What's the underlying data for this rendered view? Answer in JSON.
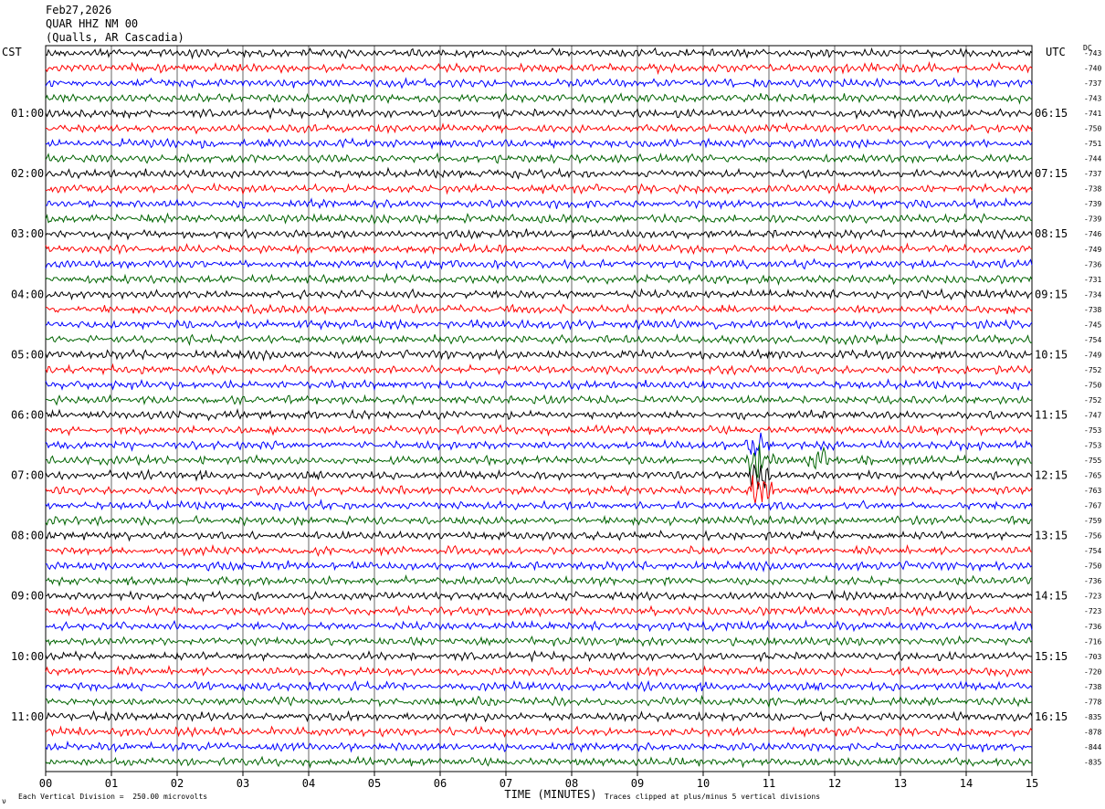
{
  "header": {
    "date": "Feb27,2026",
    "station": "QUAR HHZ NM 00",
    "location": "(Qualls, AR Cascadia)"
  },
  "left_tz": "CST",
  "right_tz": "UTC",
  "dc_label": "DC",
  "footer": {
    "scale_note": "Each Vertical Division =  250.00 microvolts",
    "clip_note": "Traces clipped at plus/minus 5 vertical divisions",
    "mark": "ν"
  },
  "chart_data": {
    "type": "line",
    "xlabel": "TIME (MINUTES)",
    "x_ticks": [
      "00",
      "01",
      "02",
      "03",
      "04",
      "05",
      "06",
      "07",
      "08",
      "09",
      "10",
      "11",
      "12",
      "13",
      "14",
      "15"
    ],
    "xlim": [
      0,
      15
    ],
    "trace_colors": [
      "#000000",
      "#ff0000",
      "#0000ff",
      "#006400"
    ],
    "left_hour_labels": [
      "01:00",
      "02:00",
      "03:00",
      "04:00",
      "05:00",
      "06:00",
      "07:00",
      "08:00",
      "09:00",
      "10:00",
      "11:00"
    ],
    "right_hour_labels": [
      "06:15",
      "07:15",
      "08:15",
      "09:15",
      "10:15",
      "11:15",
      "12:15",
      "13:15",
      "14:15",
      "15:15",
      "16:15"
    ],
    "dc_offsets": [
      "-743",
      "-740",
      "-737",
      "-743",
      "-741",
      "-750",
      "-751",
      "-744",
      "-737",
      "-738",
      "-739",
      "-739",
      "-746",
      "-749",
      "-736",
      "-731",
      "-734",
      "-738",
      "-745",
      "-754",
      "-749",
      "-752",
      "-750",
      "-752",
      "-747",
      "-753",
      "-753",
      "-755",
      "-765",
      "-763",
      "-767",
      "-759",
      "-756",
      "-754",
      "-750",
      "-736",
      "-723",
      "-723",
      "-736",
      "-716",
      "-703",
      "-720",
      "-738",
      "-778",
      "-835",
      "-878",
      "-844",
      "-835"
    ],
    "events": [
      {
        "trace": 26,
        "minute": 10.85,
        "note": "large signal"
      },
      {
        "trace": 27,
        "minute": 10.85,
        "note": "large signal"
      },
      {
        "trace": 28,
        "minute": 10.85,
        "note": "large signal"
      },
      {
        "trace": 29,
        "minute": 10.85,
        "note": "large signal"
      },
      {
        "trace": 27,
        "minute": 11.8,
        "note": "burst"
      }
    ]
  }
}
